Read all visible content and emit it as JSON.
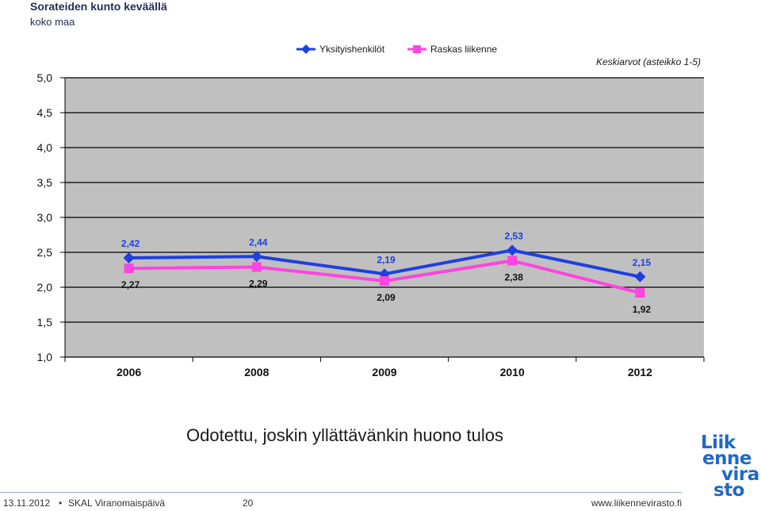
{
  "chart_data": {
    "type": "line",
    "title": "Sorateiden kunto keväällä",
    "subtitle": "koko maa",
    "note": "Keskiarvot (asteikko 1-5)",
    "categories": [
      "2006",
      "2008",
      "2009",
      "2010",
      "2012"
    ],
    "ylim": [
      1.0,
      5.0
    ],
    "yticks": [
      "1,0",
      "1,5",
      "2,0",
      "2,5",
      "3,0",
      "3,5",
      "4,0",
      "4,5",
      "5,0"
    ],
    "grid": true,
    "legend_position": "top",
    "background_color": "#c0c0c0",
    "series": [
      {
        "name": "Yksityishenkilöt",
        "color": "#1f3fe0",
        "marker": "diamond",
        "values": [
          2.42,
          2.44,
          2.19,
          2.53,
          2.15
        ],
        "labels": [
          "2,42",
          "2,44",
          "2,19",
          "2,53",
          "2,15"
        ]
      },
      {
        "name": "Raskas liikenne",
        "color": "#ff44e0",
        "marker": "square",
        "values": [
          2.27,
          2.29,
          2.09,
          2.38,
          1.92
        ],
        "labels": [
          "2,27",
          "2,29",
          "2,09",
          "2,38",
          "1,92"
        ]
      }
    ]
  },
  "slide": {
    "caption": "Odotettu, joskin yllättävänkin huono tulos"
  },
  "footer": {
    "date": "13.11.2012",
    "dot": "•",
    "event": "SKAL Viranomaispäivä",
    "page": "20",
    "url": "www.liikennevirasto.fi"
  },
  "logo": {
    "lines": [
      "Liik",
      "enne",
      "vira",
      "sto"
    ]
  }
}
